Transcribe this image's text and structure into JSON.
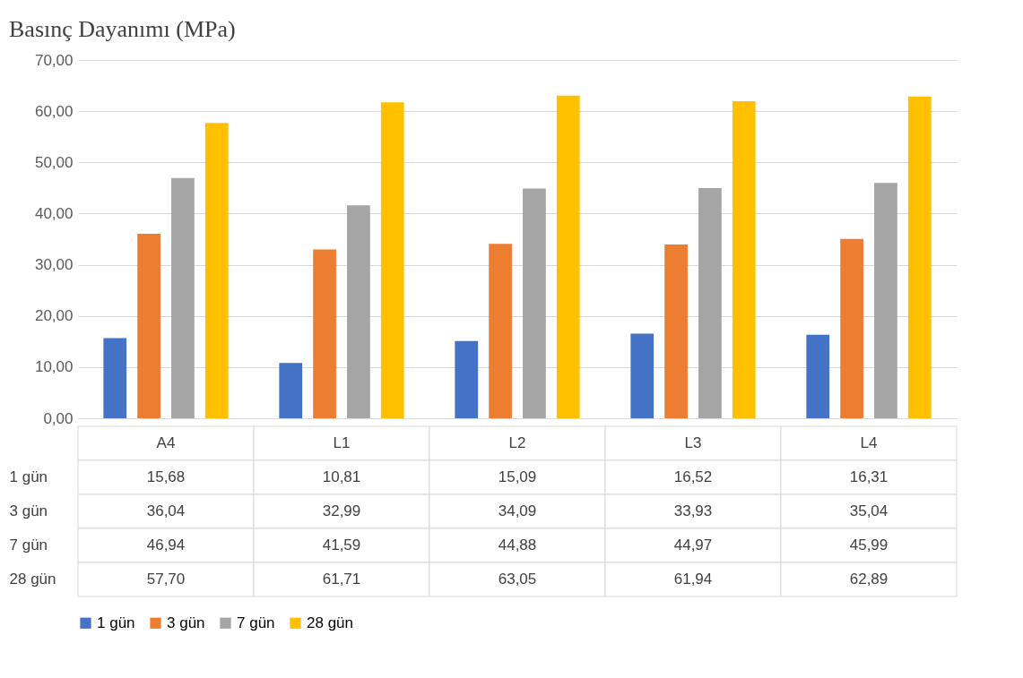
{
  "chart_data": {
    "type": "bar",
    "title": "Basınç Dayanımı (MPa)",
    "categories": [
      "A4",
      "L1",
      "L2",
      "L3",
      "L4"
    ],
    "series": [
      {
        "name": "1 gün",
        "color": "#4472c4",
        "values": [
          15.68,
          10.81,
          15.09,
          16.52,
          16.31
        ],
        "value_labels": [
          "15,68",
          "10,81",
          "15,09",
          "16,52",
          "16,31"
        ]
      },
      {
        "name": "3 gün",
        "color": "#ed7d31",
        "values": [
          36.04,
          32.99,
          34.09,
          33.93,
          35.04
        ],
        "value_labels": [
          "36,04",
          "32,99",
          "34,09",
          "33,93",
          "35,04"
        ]
      },
      {
        "name": "7 gün",
        "color": "#a5a5a5",
        "values": [
          46.94,
          41.59,
          44.88,
          44.97,
          45.99
        ],
        "value_labels": [
          "46,94",
          "41,59",
          "44,88",
          "44,97",
          "45,99"
        ]
      },
      {
        "name": "28 gün",
        "color": "#ffc000",
        "values": [
          57.7,
          61.71,
          63.05,
          61.94,
          62.89
        ],
        "value_labels": [
          "57,70",
          "61,71",
          "63,05",
          "61,94",
          "62,89"
        ]
      }
    ],
    "ylim": [
      0,
      70
    ],
    "yticks": [
      {
        "value": 0,
        "label": "0,00"
      },
      {
        "value": 10,
        "label": "10,00"
      },
      {
        "value": 20,
        "label": "20,00"
      },
      {
        "value": 30,
        "label": "30,00"
      },
      {
        "value": 40,
        "label": "40,00"
      },
      {
        "value": 50,
        "label": "50,00"
      },
      {
        "value": 60,
        "label": "60,00"
      },
      {
        "value": 70,
        "label": "70,00"
      }
    ],
    "grid": "y",
    "legend": "bottom"
  }
}
